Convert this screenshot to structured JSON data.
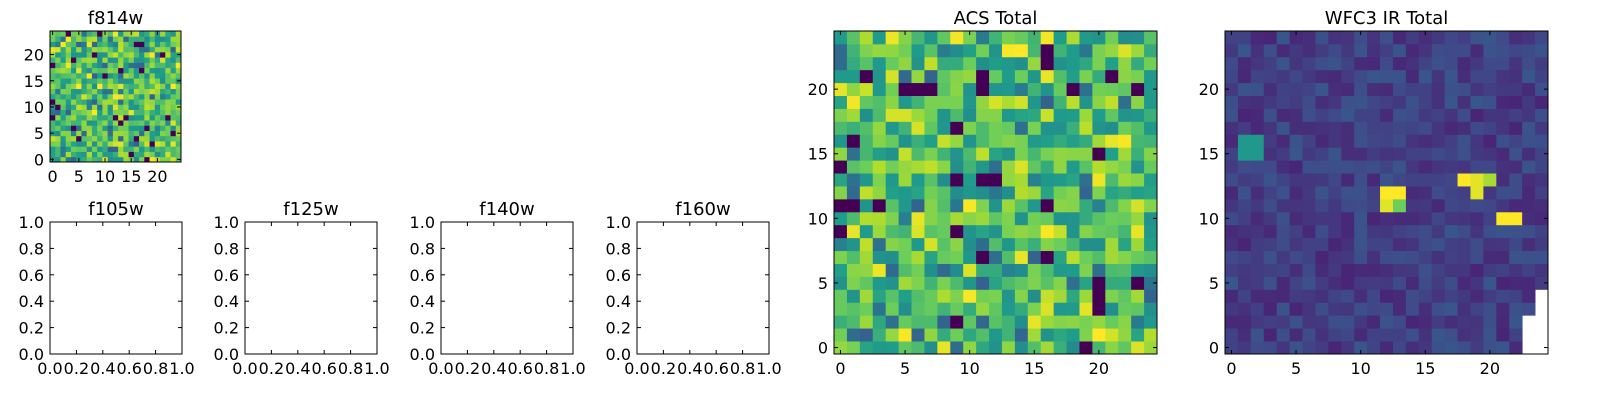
{
  "chart_data": [
    {
      "type": "heatmap",
      "title": "f814w",
      "xlabel": "",
      "ylabel": "",
      "xlim": [
        -0.5,
        24.5
      ],
      "ylim": [
        -0.5,
        24.5
      ],
      "xticks": [
        0,
        5,
        10,
        15,
        20
      ],
      "yticks": [
        0,
        5,
        10,
        15,
        20
      ],
      "colormap": "viridis",
      "rows": 25,
      "cols": 25,
      "value_range": [
        0,
        1
      ],
      "values": []
    },
    {
      "type": "line",
      "title": "f105w",
      "xlabel": "",
      "ylabel": "",
      "xlim": [
        0.0,
        1.0
      ],
      "ylim": [
        0.0,
        1.0
      ],
      "xticks": [
        "0.0",
        "0.2",
        "0.4",
        "0.6",
        "0.8",
        "1.0"
      ],
      "yticks": [
        "0.0",
        "0.2",
        "0.4",
        "0.6",
        "0.8",
        "1.0"
      ],
      "series": []
    },
    {
      "type": "line",
      "title": "f125w",
      "xlabel": "",
      "ylabel": "",
      "xlim": [
        0.0,
        1.0
      ],
      "ylim": [
        0.0,
        1.0
      ],
      "xticks": [
        "0.0",
        "0.2",
        "0.4",
        "0.6",
        "0.8",
        "1.0"
      ],
      "yticks": [
        "0.0",
        "0.2",
        "0.4",
        "0.6",
        "0.8",
        "1.0"
      ],
      "series": []
    },
    {
      "type": "line",
      "title": "f140w",
      "xlabel": "",
      "ylabel": "",
      "xlim": [
        0.0,
        1.0
      ],
      "ylim": [
        0.0,
        1.0
      ],
      "xticks": [
        "0.0",
        "0.2",
        "0.4",
        "0.6",
        "0.8",
        "1.0"
      ],
      "yticks": [
        "0.0",
        "0.2",
        "0.4",
        "0.6",
        "0.8",
        "1.0"
      ],
      "series": []
    },
    {
      "type": "line",
      "title": "f160w",
      "xlabel": "",
      "ylabel": "",
      "xlim": [
        0.0,
        1.0
      ],
      "ylim": [
        0.0,
        1.0
      ],
      "xticks": [
        "0.0",
        "0.2",
        "0.4",
        "0.6",
        "0.8",
        "1.0"
      ],
      "yticks": [
        "0.0",
        "0.2",
        "0.4",
        "0.6",
        "0.8",
        "1.0"
      ],
      "series": []
    },
    {
      "type": "heatmap",
      "title": "ACS Total",
      "xlabel": "",
      "ylabel": "",
      "xlim": [
        -0.5,
        24.5
      ],
      "ylim": [
        -0.5,
        24.5
      ],
      "xticks": [
        0,
        5,
        10,
        15,
        20
      ],
      "yticks": [
        0,
        5,
        10,
        15,
        20
      ],
      "colormap": "viridis",
      "rows": 25,
      "cols": 25,
      "value_range": [
        0,
        1
      ],
      "values": []
    },
    {
      "type": "heatmap",
      "title": "WFC3 IR Total",
      "xlabel": "",
      "ylabel": "",
      "xlim": [
        -0.5,
        24.5
      ],
      "ylim": [
        -0.5,
        24.5
      ],
      "xticks": [
        0,
        5,
        10,
        15,
        20
      ],
      "yticks": [
        0,
        5,
        10,
        15,
        20
      ],
      "colormap": "viridis",
      "rows": 25,
      "cols": 25,
      "value_range": [
        0,
        1
      ],
      "values": []
    }
  ],
  "colors": {
    "viridis": [
      "#440154",
      "#482777",
      "#3f4a8a",
      "#31678e",
      "#26838f",
      "#1f9d8a",
      "#6cce5a",
      "#b6de2b",
      "#fee825"
    ],
    "axes": "#000000",
    "background": "#ffffff"
  }
}
